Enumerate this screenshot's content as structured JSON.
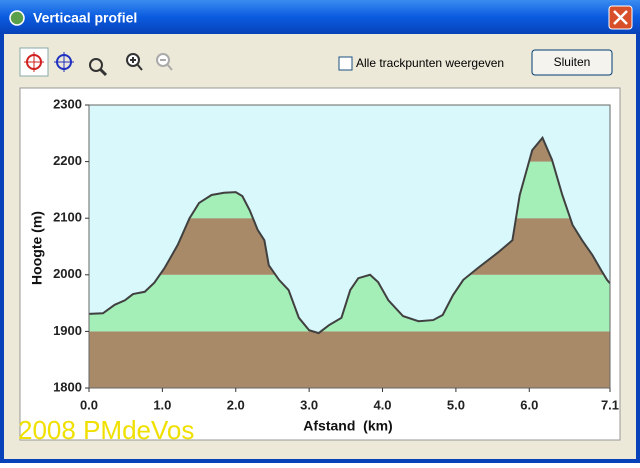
{
  "window": {
    "title": "Verticaal profiel",
    "checkbox_label": "Alle trackpunten weergeven",
    "button_label": "Sluiten",
    "watermark": "2008 PMdeVos"
  },
  "chart_data": {
    "type": "area",
    "x_label": "Afstand  (km)",
    "y_label": "Hoogte (m)",
    "x": [
      0,
      0.19,
      0.35,
      0.49,
      0.6,
      0.76,
      0.89,
      1.03,
      1.21,
      1.37,
      1.5,
      1.67,
      1.84,
      2.0,
      2.09,
      2.19,
      2.3,
      2.39,
      2.45,
      2.59,
      2.72,
      2.86,
      3.0,
      3.13,
      3.27,
      3.44,
      3.56,
      3.67,
      3.83,
      3.94,
      4.08,
      4.28,
      4.49,
      4.69,
      4.82,
      4.96,
      5.1,
      5.3,
      5.57,
      5.77,
      5.87,
      6.04,
      6.18,
      6.31,
      6.45,
      6.59,
      6.72,
      6.86,
      6.98,
      7.06,
      7.1
    ],
    "values": [
      1931,
      1932,
      1947,
      1955,
      1966,
      1970,
      1986,
      2012,
      2053,
      2100,
      2127,
      2141,
      2145,
      2146,
      2139,
      2114,
      2079,
      2061,
      2017,
      1991,
      1973,
      1924,
      1902,
      1897,
      1911,
      1924,
      1973,
      1994,
      2000,
      1987,
      1955,
      1927,
      1918,
      1920,
      1929,
      1964,
      1991,
      2012,
      2039,
      2061,
      2141,
      2220,
      2242,
      2203,
      2141,
      2088,
      2061,
      2035,
      2008,
      1991,
      1985
    ],
    "xlim": [
      0,
      7.1
    ],
    "ylim": [
      1800,
      2300
    ],
    "xticks": [
      {
        "value": 0,
        "label": "0.0"
      },
      {
        "value": 1,
        "label": "1.0"
      },
      {
        "value": 2,
        "label": "2.0"
      },
      {
        "value": 3,
        "label": "3.0"
      },
      {
        "value": 4,
        "label": "4.0"
      },
      {
        "value": 5,
        "label": "5.0"
      },
      {
        "value": 6,
        "label": "6.0"
      },
      7.1
    ],
    "yticks": [
      1800,
      1900,
      2000,
      2100,
      2200,
      2300
    ],
    "color": "#404040",
    "background": "#d8f8fb",
    "band_colors": [
      "#a88a68",
      "#a4eeb8"
    ]
  }
}
